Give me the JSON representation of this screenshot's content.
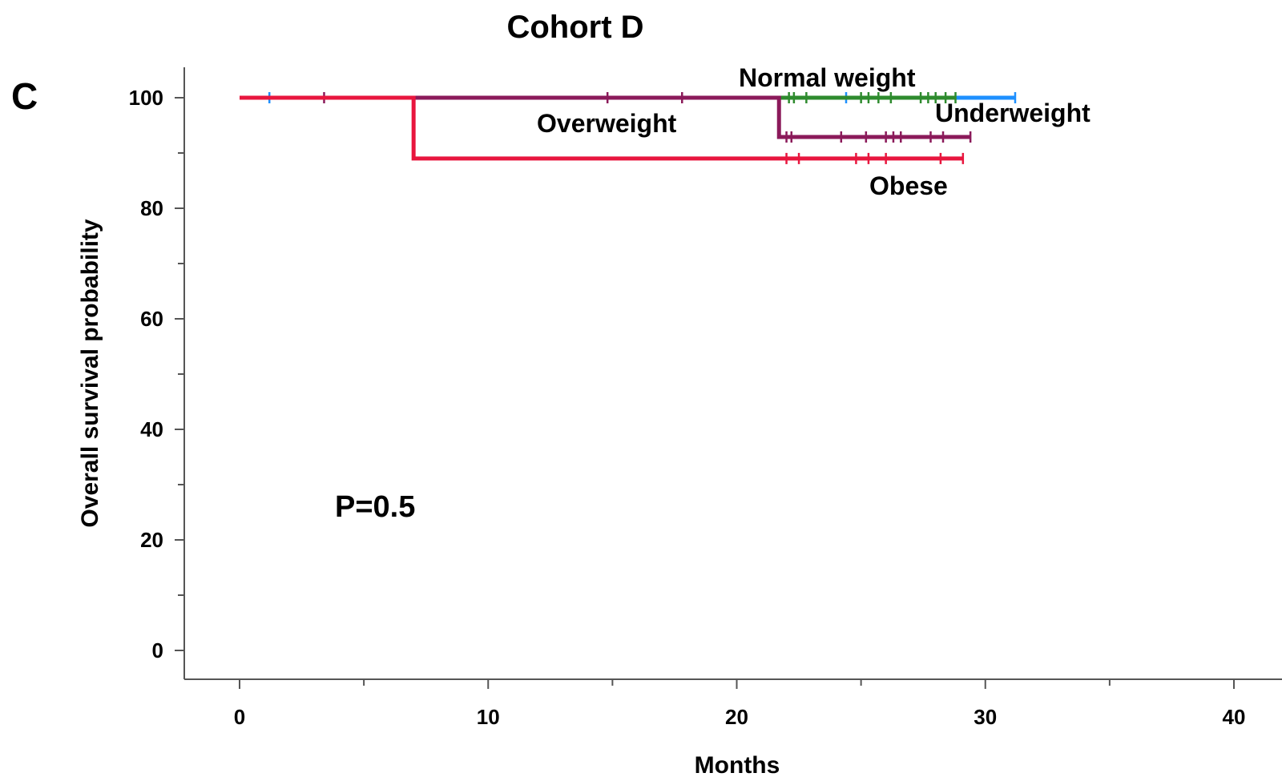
{
  "chart_data": {
    "type": "line",
    "subtype": "kaplan-meier",
    "title": "Cohort D",
    "panel_label": "C",
    "xlabel": "Months",
    "ylabel": "Overall survival probability",
    "xlim": [
      0,
      40
    ],
    "ylim": [
      0,
      100
    ],
    "x_ticks": [
      "0",
      "10",
      "20",
      "30",
      "40"
    ],
    "y_ticks": [
      "0",
      "20",
      "40",
      "60",
      "80",
      "100"
    ],
    "annotation": "P=0.5",
    "grid": false,
    "series": [
      {
        "name": "Underweight",
        "color": "#1e90ff",
        "x": [
          0,
          31.2
        ],
        "y": [
          100,
          100
        ],
        "censored": [
          1.2,
          24.4,
          31.2
        ]
      },
      {
        "name": "Normal weight",
        "color": "#2e8b2e",
        "x": [
          0,
          28.8
        ],
        "y": [
          100,
          100
        ],
        "censored": [
          22.1,
          22.3,
          22.8,
          25.0,
          25.3,
          25.7,
          26.2,
          27.4,
          27.7,
          28.0,
          28.4,
          28.8
        ]
      },
      {
        "name": "Overweight",
        "color": "#8b1a5a",
        "x": [
          0,
          21.7,
          21.7,
          29.4
        ],
        "y": [
          100,
          100,
          92.9,
          92.9
        ],
        "censored": [
          3.4,
          14.8,
          17.8,
          22.0,
          22.2,
          24.2,
          25.2,
          26.0,
          26.3,
          26.6,
          27.8,
          28.3,
          29.4
        ]
      },
      {
        "name": "Obese",
        "color": "#e8163e",
        "x": [
          0,
          7.0,
          7.0,
          29.1
        ],
        "y": [
          100,
          100,
          89,
          89
        ],
        "censored": [
          22.0,
          22.5,
          24.8,
          25.3,
          26.0,
          28.2,
          29.1
        ]
      }
    ]
  }
}
